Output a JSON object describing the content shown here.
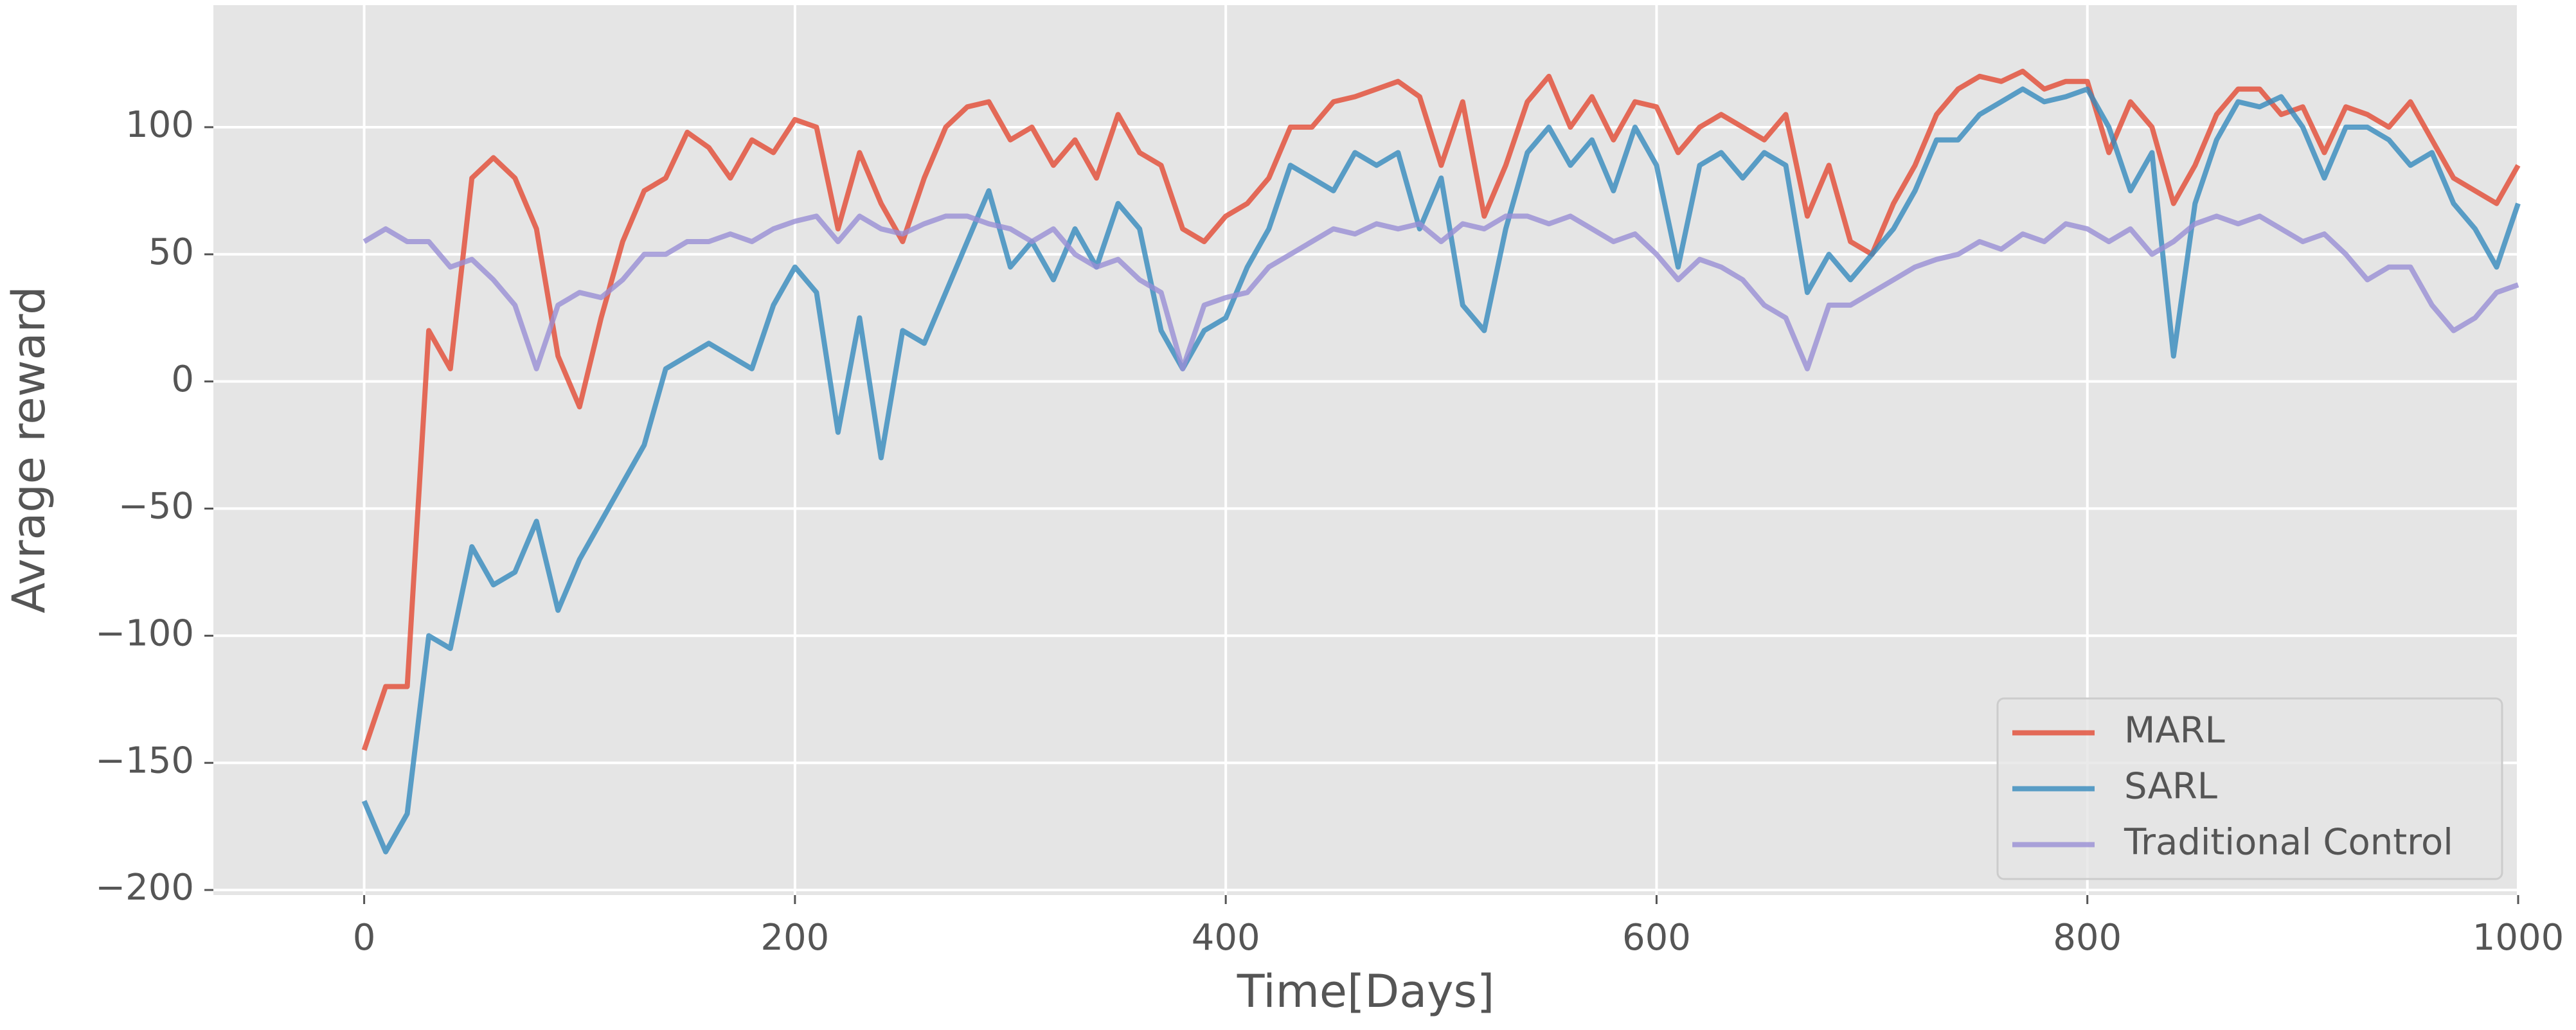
{
  "chart_data": {
    "type": "line",
    "xlabel": "Time[Days]",
    "ylabel": "Avrage reward",
    "xlim": [
      -70,
      1000
    ],
    "ylim": [
      -202,
      148
    ],
    "xticks": [
      0,
      200,
      400,
      600,
      800,
      1000
    ],
    "yticks": [
      {
        "value": -200,
        "label": "−200"
      },
      {
        "value": -150,
        "label": "−150"
      },
      {
        "value": -100,
        "label": "−100"
      },
      {
        "value": -50,
        "label": "−50"
      },
      0,
      50,
      100
    ],
    "grid": true,
    "legend": "lower right",
    "x": [
      0,
      10,
      20,
      30,
      40,
      50,
      60,
      70,
      80,
      90,
      100,
      110,
      120,
      130,
      140,
      150,
      160,
      170,
      180,
      190,
      200,
      210,
      220,
      230,
      240,
      250,
      260,
      270,
      280,
      290,
      300,
      310,
      320,
      330,
      340,
      350,
      360,
      370,
      380,
      390,
      400,
      410,
      420,
      430,
      440,
      450,
      460,
      470,
      480,
      490,
      500,
      510,
      520,
      530,
      540,
      550,
      560,
      570,
      580,
      590,
      600,
      610,
      620,
      630,
      640,
      650,
      660,
      670,
      680,
      690,
      700,
      710,
      720,
      730,
      740,
      750,
      760,
      770,
      780,
      790,
      800,
      810,
      820,
      830,
      840,
      850,
      860,
      870,
      880,
      890,
      900,
      910,
      920,
      930,
      940,
      950,
      960,
      970,
      980,
      990,
      1000
    ],
    "series": [
      {
        "name": "MARL",
        "color": "#e24a33",
        "values": [
          -145,
          -120,
          -120,
          20,
          5,
          80,
          88,
          80,
          60,
          10,
          -10,
          25,
          55,
          75,
          80,
          98,
          92,
          80,
          95,
          90,
          103,
          100,
          60,
          90,
          70,
          55,
          80,
          100,
          108,
          110,
          95,
          100,
          85,
          95,
          80,
          105,
          90,
          85,
          60,
          55,
          65,
          70,
          80,
          100,
          100,
          110,
          112,
          115,
          118,
          112,
          85,
          110,
          65,
          85,
          110,
          120,
          100,
          112,
          95,
          110,
          108,
          90,
          100,
          105,
          100,
          95,
          105,
          65,
          85,
          55,
          50,
          70,
          85,
          105,
          115,
          120,
          118,
          122,
          115,
          118,
          118,
          90,
          110,
          100,
          70,
          85,
          105,
          115,
          115,
          105,
          108,
          90,
          108,
          105,
          100,
          110,
          95,
          80,
          75,
          70,
          85
        ]
      },
      {
        "name": "SARL",
        "color": "#348abd",
        "values": [
          -165,
          -185,
          -170,
          -100,
          -105,
          -65,
          -80,
          -75,
          -55,
          -90,
          -70,
          -55,
          -40,
          -25,
          5,
          10,
          15,
          10,
          5,
          30,
          45,
          35,
          -20,
          25,
          -30,
          20,
          15,
          35,
          55,
          75,
          45,
          55,
          40,
          60,
          45,
          70,
          60,
          20,
          5,
          20,
          25,
          45,
          60,
          85,
          80,
          75,
          90,
          85,
          90,
          60,
          80,
          30,
          20,
          60,
          90,
          100,
          85,
          95,
          75,
          100,
          85,
          45,
          85,
          90,
          80,
          90,
          85,
          35,
          50,
          40,
          50,
          60,
          75,
          95,
          95,
          105,
          110,
          115,
          110,
          112,
          115,
          100,
          75,
          90,
          10,
          70,
          95,
          110,
          108,
          112,
          100,
          80,
          100,
          100,
          95,
          85,
          90,
          70,
          60,
          45,
          70
        ]
      },
      {
        "name": "Traditional Control",
        "color": "#988ed5",
        "values": [
          55,
          60,
          55,
          55,
          45,
          48,
          40,
          30,
          5,
          30,
          35,
          33,
          40,
          50,
          50,
          55,
          55,
          58,
          55,
          60,
          63,
          65,
          55,
          65,
          60,
          58,
          62,
          65,
          65,
          62,
          60,
          55,
          60,
          50,
          45,
          48,
          40,
          35,
          5,
          30,
          33,
          35,
          45,
          50,
          55,
          60,
          58,
          62,
          60,
          62,
          55,
          62,
          60,
          65,
          65,
          62,
          65,
          60,
          55,
          58,
          50,
          40,
          48,
          45,
          40,
          30,
          25,
          5,
          30,
          30,
          35,
          40,
          45,
          48,
          50,
          55,
          52,
          58,
          55,
          62,
          60,
          55,
          60,
          50,
          55,
          62,
          65,
          62,
          65,
          60,
          55,
          58,
          50,
          40,
          45,
          45,
          30,
          20,
          25,
          35,
          38
        ]
      }
    ]
  }
}
